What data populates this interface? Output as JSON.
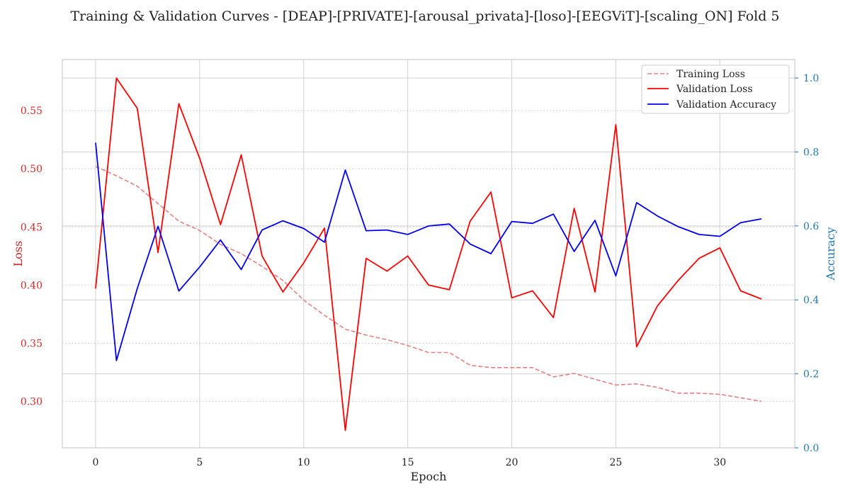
{
  "chart_data": {
    "type": "line",
    "title": "Training & Validation Curves - [DEAP]-[PRIVATE]-[arousal_privata]-[loso]-[EEGViT]-[scaling_ON] Fold 5",
    "xlabel": "Epoch",
    "ylabel_left": "Loss",
    "ylabel_right": "Accuracy",
    "xlim": [
      -1.6,
      33.6
    ],
    "ylim_left": [
      0.26,
      0.594
    ],
    "ylim_right": [
      0.0,
      1.05
    ],
    "x_ticks": [
      0,
      5,
      10,
      15,
      20,
      25,
      30
    ],
    "y_ticks_left": [
      0.3,
      0.35,
      0.4,
      0.45,
      0.5,
      0.55
    ],
    "y_ticks_right": [
      0.0,
      0.2,
      0.4,
      0.6,
      0.8,
      1.0
    ],
    "grid": true,
    "legend_position": "top-right",
    "colors": {
      "left_axis": "#d62728",
      "right_axis": "#1f77b4",
      "training_loss": "#e88080",
      "validation_loss": "#ff0000",
      "validation_accuracy": "#0000ee"
    },
    "x": [
      0,
      1,
      2,
      3,
      4,
      5,
      6,
      7,
      8,
      9,
      10,
      11,
      12,
      13,
      14,
      15,
      16,
      17,
      18,
      19,
      20,
      21,
      22,
      23,
      24,
      25,
      26,
      27,
      28,
      29,
      30,
      31,
      32
    ],
    "series": [
      {
        "name": "Training Loss",
        "axis": "left",
        "style": "dashed",
        "values": [
          0.502,
          0.494,
          0.485,
          0.47,
          0.455,
          0.447,
          0.435,
          0.427,
          0.416,
          0.404,
          0.387,
          0.374,
          0.362,
          0.357,
          0.353,
          0.348,
          0.342,
          0.342,
          0.331,
          0.329,
          0.329,
          0.329,
          0.321,
          0.324,
          0.319,
          0.314,
          0.315,
          0.312,
          0.307,
          0.307,
          0.306,
          0.303,
          0.3
        ]
      },
      {
        "name": "Validation Loss",
        "axis": "left",
        "style": "solid",
        "values": [
          0.397,
          0.578,
          0.552,
          0.428,
          0.556,
          0.509,
          0.452,
          0.512,
          0.425,
          0.394,
          0.419,
          0.449,
          0.275,
          0.423,
          0.412,
          0.425,
          0.4,
          0.396,
          0.455,
          0.48,
          0.389,
          0.395,
          0.372,
          0.466,
          0.394,
          0.538,
          0.347,
          0.382,
          0.404,
          0.423,
          0.432,
          0.395,
          0.388
        ]
      },
      {
        "name": "Validation Accuracy",
        "axis": "right",
        "style": "solid",
        "values": [
          0.825,
          0.236,
          0.431,
          0.599,
          0.424,
          0.489,
          0.562,
          0.482,
          0.589,
          0.614,
          0.593,
          0.556,
          0.751,
          0.587,
          0.589,
          0.577,
          0.6,
          0.605,
          0.551,
          0.525,
          0.612,
          0.607,
          0.632,
          0.531,
          0.615,
          0.465,
          0.663,
          0.627,
          0.598,
          0.577,
          0.572,
          0.609,
          0.619
        ]
      }
    ]
  }
}
